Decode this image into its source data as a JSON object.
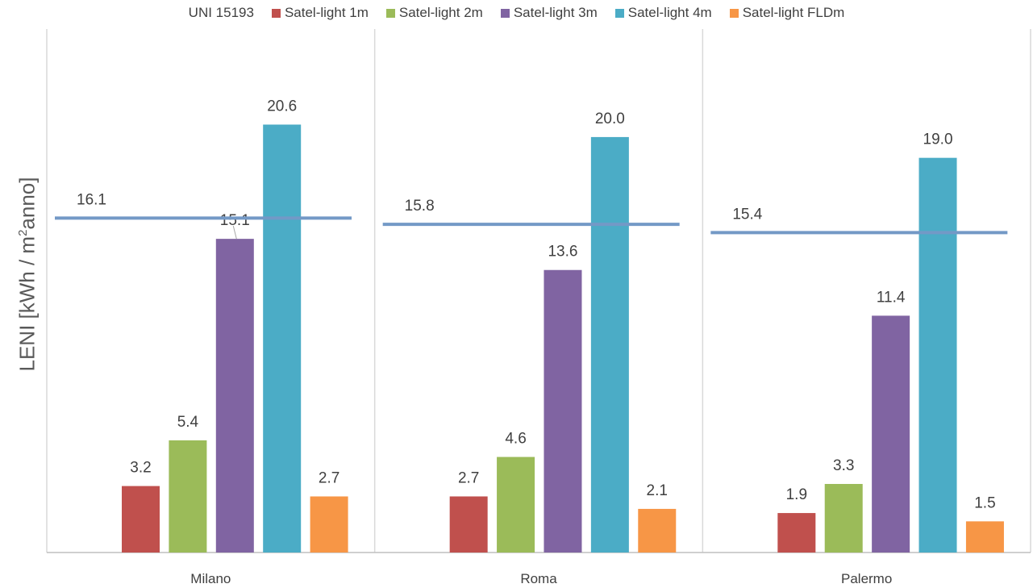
{
  "chart_data": {
    "type": "bar",
    "title": "",
    "categories": [
      "Milano",
      "Roma",
      "Palermo"
    ],
    "reference_line": {
      "name": "UNI 15193",
      "values": [
        16.1,
        15.8,
        15.4
      ],
      "color": "#7399C6"
    },
    "series": [
      {
        "name": "Satel-light 1m",
        "values": [
          3.2,
          2.7,
          1.9
        ],
        "color": "#C0504D"
      },
      {
        "name": "Satel-light 2m",
        "values": [
          5.4,
          4.6,
          3.3
        ],
        "color": "#9BBB59"
      },
      {
        "name": "Satel-light 3m",
        "values": [
          15.1,
          13.6,
          11.4
        ],
        "color": "#8064A2"
      },
      {
        "name": "Satel-light 4m",
        "values": [
          20.6,
          20.0,
          19.0
        ],
        "color": "#4BACC6"
      },
      {
        "name": "Satel-light FLDm",
        "values": [
          2.7,
          2.1,
          1.5
        ],
        "color": "#F79646"
      }
    ],
    "ylabel": {
      "main": "LENI [kWh / m",
      "sup": "2",
      "tail": "anno]"
    },
    "ylim": [
      0,
      25.2
    ],
    "legend_position": "top",
    "gridlines": false,
    "category_separators": true
  }
}
